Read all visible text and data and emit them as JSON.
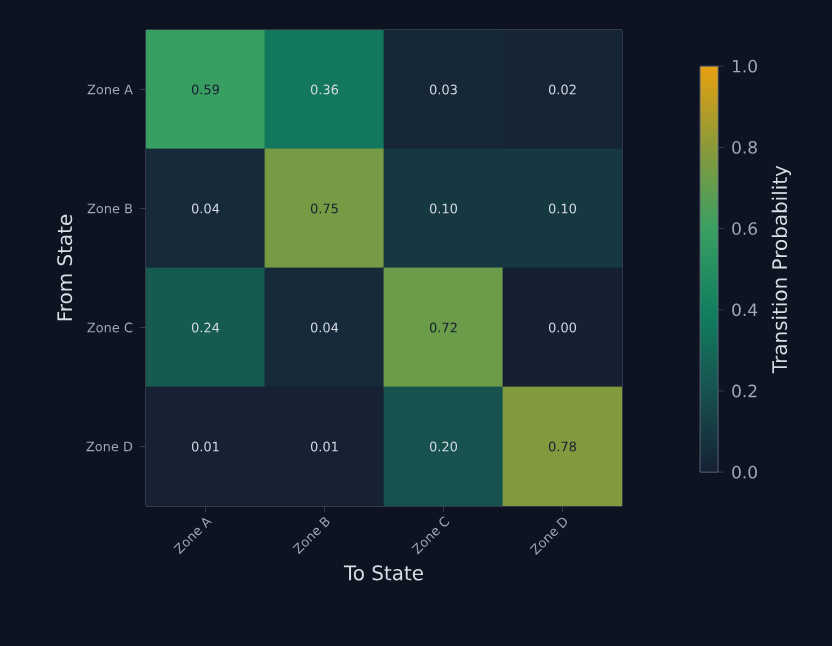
{
  "chart_data": {
    "type": "heatmap",
    "xlabel": "To State",
    "ylabel": "From State",
    "clabel": "Transition Probability",
    "categories": [
      "Zone A",
      "Zone B",
      "Zone C",
      "Zone D"
    ],
    "y_categories": [
      "Zone A",
      "Zone B",
      "Zone C",
      "Zone D"
    ],
    "cells": [
      [
        0.59,
        0.36,
        0.03,
        0.02
      ],
      [
        0.04,
        0.75,
        0.1,
        0.1
      ],
      [
        0.24,
        0.04,
        0.72,
        0.0
      ],
      [
        0.01,
        0.01,
        0.2,
        0.78
      ]
    ],
    "cell_labels": [
      [
        "0.59",
        "0.36",
        "0.03",
        "0.02"
      ],
      [
        "0.04",
        "0.75",
        "0.10",
        "0.10"
      ],
      [
        "0.24",
        "0.04",
        "0.72",
        "0.00"
      ],
      [
        "0.01",
        "0.01",
        "0.20",
        "0.78"
      ]
    ],
    "clim": [
      0,
      1
    ],
    "cticks": [
      {
        "value": 0,
        "label": "0.0"
      },
      {
        "value": 0.2,
        "label": "0.2"
      },
      {
        "value": 0.4,
        "label": "0.4"
      },
      {
        "value": 0.6,
        "label": "0.6"
      },
      {
        "value": 0.8,
        "label": "0.8"
      },
      {
        "value": 1,
        "label": "1.0"
      }
    ]
  }
}
